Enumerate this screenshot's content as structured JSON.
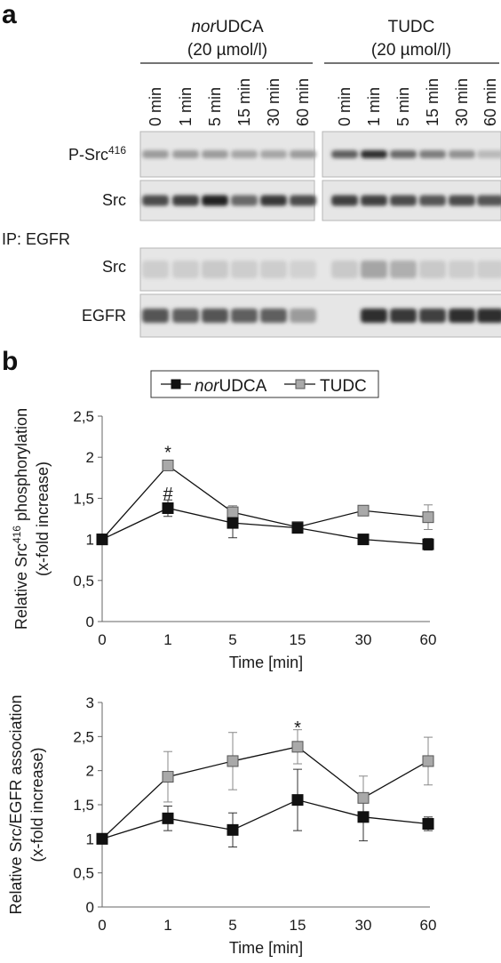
{
  "panel_a": {
    "letter": "a",
    "groups": [
      {
        "name_italic": "nor",
        "name_rest": "UDCA",
        "conc": "(20 µmol/l)"
      },
      {
        "name_italic": "",
        "name_rest": "TUDC",
        "conc": "(20 µmol/l)"
      }
    ],
    "lanes_group1": [
      "0 min",
      "1 min",
      "5 min",
      "15 min",
      "30 min",
      "60 min"
    ],
    "lanes_group2": [
      "0 min",
      "1 min",
      "5 min",
      "15 min",
      "30 min",
      "60 min"
    ],
    "blot_labels": {
      "psrc_main": "P-Src",
      "psrc_sup": "416",
      "src": "Src",
      "ip": "IP: EGFR",
      "ip_src": "Src",
      "egfr": "EGFR"
    },
    "band_intensity": {
      "psrc": [
        0.35,
        0.35,
        0.35,
        0.3,
        0.3,
        0.35,
        0.65,
        0.9,
        0.6,
        0.5,
        0.4,
        0.2
      ],
      "src": [
        0.75,
        0.8,
        0.95,
        0.6,
        0.85,
        0.75,
        0.8,
        0.8,
        0.75,
        0.7,
        0.75,
        0.7
      ],
      "ip_src": [
        0.1,
        0.1,
        0.12,
        0.1,
        0.1,
        0.08,
        0.12,
        0.3,
        0.25,
        0.12,
        0.1,
        0.1
      ],
      "egfr": [
        0.7,
        0.65,
        0.7,
        0.65,
        0.65,
        0.35,
        0.0,
        0.9,
        0.85,
        0.8,
        0.9,
        0.9
      ]
    }
  },
  "panel_b": {
    "letter": "b",
    "legend": [
      {
        "italic": "nor",
        "rest": "UDCA",
        "color": "#111111"
      },
      {
        "italic": "",
        "rest": "TUDC",
        "color": "#a9a9a9"
      }
    ]
  },
  "chart_data": [
    {
      "type": "line",
      "ylabel_line1_pre": "Relative Src",
      "ylabel_line1_sup": "416",
      "ylabel_line1_post": " phosphorylation",
      "ylabel_line2": "(x-fold increase)",
      "xlabel": "Time [min]",
      "categories": [
        "0",
        "1",
        "5",
        "15",
        "30",
        "60"
      ],
      "ylim": [
        0,
        2.5
      ],
      "yticks": [
        "0",
        "0,5",
        "1",
        "1,5",
        "2",
        "2,5"
      ],
      "series": [
        {
          "name": "norUDCA",
          "color": "#111111",
          "values": [
            1,
            1.38,
            1.2,
            1.14,
            1.0,
            0.94
          ],
          "errors": [
            0,
            0.1,
            0.18,
            0.06,
            0.03,
            0.07
          ]
        },
        {
          "name": "TUDC",
          "color": "#a9a9a9",
          "values": [
            1,
            1.9,
            1.33,
            1.15,
            1.35,
            1.27
          ],
          "errors": [
            0,
            0.06,
            0.08,
            0.06,
            0.05,
            0.15
          ]
        }
      ],
      "annotations": [
        {
          "text": "*",
          "x": "1",
          "y": 2.07
        },
        {
          "text": "#",
          "x": "1",
          "y": 1.57
        }
      ]
    },
    {
      "type": "line",
      "ylabel_line1": "Relative Src/EGFR association",
      "ylabel_line2": "(x-fold increase)",
      "xlabel": "Time [min]",
      "categories": [
        "0",
        "1",
        "5",
        "15",
        "30",
        "60"
      ],
      "ylim": [
        0,
        3
      ],
      "yticks": [
        "0",
        "0,5",
        "1",
        "1,5",
        "2",
        "2,5",
        "3"
      ],
      "series": [
        {
          "name": "norUDCA",
          "color": "#111111",
          "values": [
            1,
            1.3,
            1.13,
            1.57,
            1.32,
            1.22
          ],
          "errors": [
            0,
            0.18,
            0.25,
            0.45,
            0.35,
            0.1
          ]
        },
        {
          "name": "TUDC",
          "color": "#a9a9a9",
          "values": [
            1,
            1.91,
            2.14,
            2.35,
            1.6,
            2.14
          ],
          "errors": [
            0,
            0.37,
            0.42,
            0.25,
            0.32,
            0.35
          ]
        }
      ],
      "annotations": [
        {
          "text": "*",
          "x": "15",
          "y": 2.65
        }
      ]
    }
  ]
}
